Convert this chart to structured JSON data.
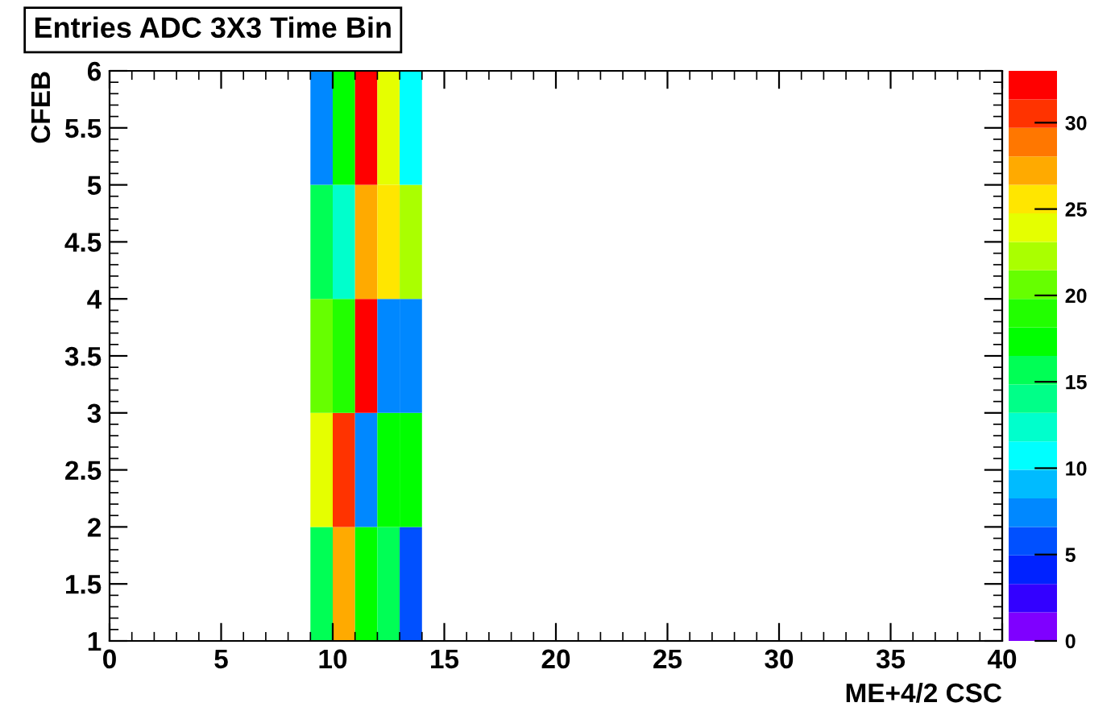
{
  "chart_data": {
    "type": "heatmap",
    "title": "Entries ADC 3X3 Time Bin",
    "xlabel": "ME+4/2 CSC",
    "ylabel": "CFEB",
    "x": [
      9.5,
      10.5,
      11.5,
      12.5,
      13.5
    ],
    "cells": [
      [
        7,
        17,
        32,
        24,
        11
      ],
      [
        16,
        12,
        27,
        26,
        22
      ],
      [
        21,
        19,
        32,
        7,
        7
      ],
      [
        24,
        31,
        7,
        17,
        17
      ],
      [
        16,
        27,
        17,
        16,
        6
      ]
    ],
    "xlim": [
      0,
      40
    ],
    "xticks": [
      0,
      5,
      10,
      15,
      20,
      25,
      30,
      35,
      40
    ],
    "ylim": [
      1,
      6
    ],
    "yticks": [
      1,
      1.5,
      2,
      2.5,
      3,
      3.5,
      4,
      4.5,
      5,
      5.5,
      6
    ],
    "clim": [
      0,
      33
    ],
    "cticks": [
      0,
      5,
      10,
      15,
      20,
      25,
      30
    ],
    "colors": [
      "#7f00ff",
      "#3300ff",
      "#0022ff",
      "#0050ff",
      "#0088ff",
      "#00bbff",
      "#00ffff",
      "#00ffcc",
      "#00ff88",
      "#00ff55",
      "#00ff00",
      "#22ff00",
      "#66ff00",
      "#aaff00",
      "#e5ff00",
      "#ffe600",
      "#ffaa00",
      "#ff7700",
      "#ff3300",
      "#ff0000"
    ],
    "grid": false
  }
}
